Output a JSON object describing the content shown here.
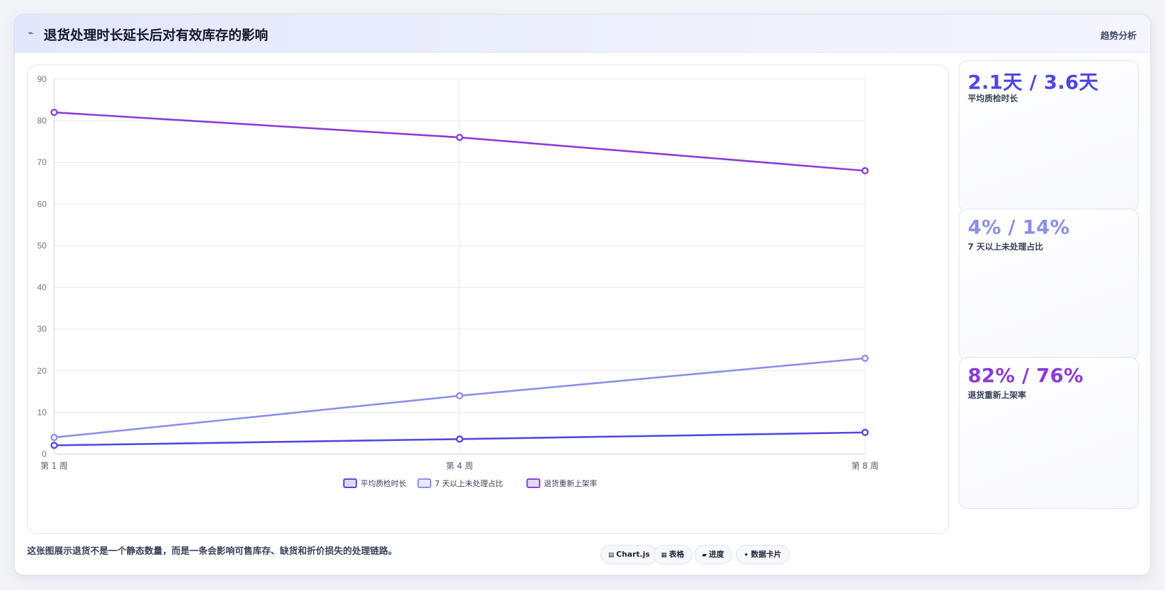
{
  "header": {
    "icon": "⌁",
    "title": "退货处理时长延长后对有效库存的影响",
    "tag": "趋势分析"
  },
  "chart_data": {
    "type": "line",
    "x": [
      "第 1 周",
      "第 4 周",
      "第 8 周"
    ],
    "ylim": [
      0,
      90
    ],
    "yticks": [
      0,
      10,
      20,
      30,
      40,
      50,
      60,
      70,
      80,
      90
    ],
    "grid": true,
    "legend": "bottom",
    "series": [
      {
        "name": "平均质检时长",
        "values": [
          2.1,
          3.6,
          5.2
        ],
        "color": "#4f46e5"
      },
      {
        "name": "7 天以上未处理占比",
        "values": [
          4,
          14,
          23
        ],
        "color": "#8b8ee8"
      },
      {
        "name": "退货重新上架率",
        "values": [
          82,
          76,
          68
        ],
        "color": "#8c3ad9"
      }
    ]
  },
  "kpis": [
    {
      "value": "2.1天 / 3.6天",
      "label": "平均质检时长",
      "color": "#4f46e5"
    },
    {
      "value": "4% / 14%",
      "label": "7 天以上未处理占比",
      "color": "#8b8ee8"
    },
    {
      "value": "82% / 76%",
      "label": "退货重新上架率",
      "color": "#8c3ad9"
    }
  ],
  "footer": {
    "description": "这张图展示退货不是一个静态数量，而是一条会影响可售库存、缺货和折价损失的处理链路。",
    "pills": [
      {
        "icon": "▤",
        "label": "Chart.js"
      },
      {
        "icon": "▦",
        "label": "表格"
      },
      {
        "icon": "▰",
        "label": "进度"
      },
      {
        "icon": "✦",
        "label": "数据卡片"
      }
    ]
  }
}
